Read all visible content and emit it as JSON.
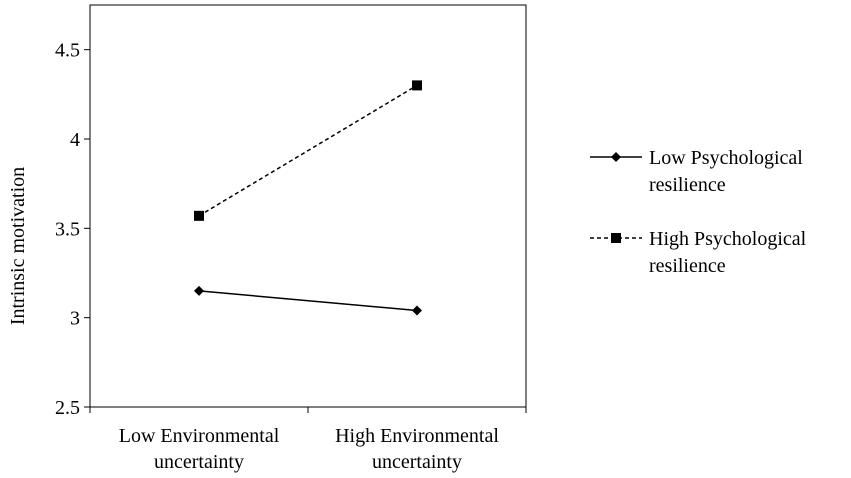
{
  "chart_data": {
    "type": "line",
    "categories": [
      [
        "Low Environmental",
        "uncertainty"
      ],
      [
        "High Environmental",
        "uncertainty"
      ]
    ],
    "ylabel": "Intrinsic motivation",
    "ylim": [
      2.5,
      4.75
    ],
    "yticks": [
      "2.5",
      "3",
      "3.5",
      "4",
      "4.5"
    ],
    "ytick_values": [
      2.5,
      3,
      3.5,
      4,
      4.5
    ],
    "legend_placement": "right",
    "series": [
      {
        "name": [
          "Low Psychological",
          "resilience"
        ],
        "values": [
          3.15,
          3.04
        ],
        "marker": "diamond",
        "line_style": "solid",
        "color": "#000000"
      },
      {
        "name": [
          "High Psychological",
          "resilience"
        ],
        "values": [
          3.57,
          4.3
        ],
        "marker": "square",
        "line_style": "dashed",
        "color": "#000000"
      }
    ]
  }
}
